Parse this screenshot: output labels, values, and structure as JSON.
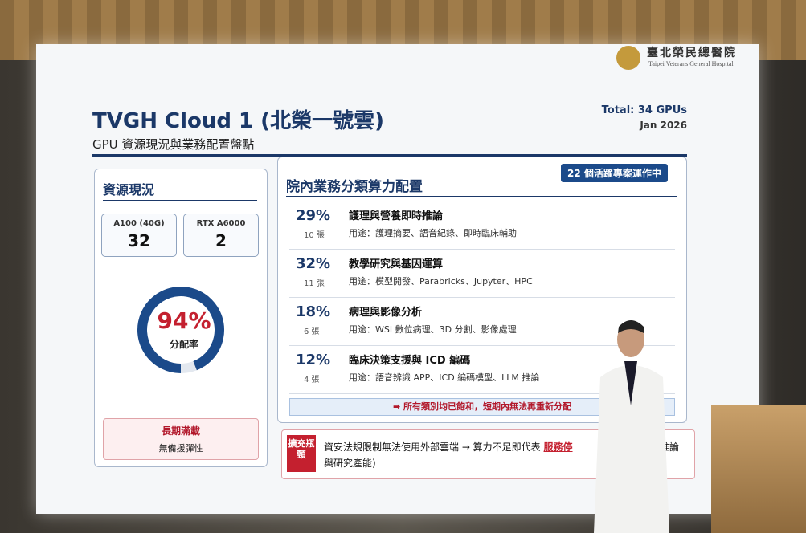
{
  "logo": {
    "name": "臺北榮民總醫院",
    "name_en": "Taipei Veterans General Hospital"
  },
  "header": {
    "title": "TVGH Cloud 1 (北榮一號雲)",
    "subtitle": "GPU 資源現況與業務配置盤點",
    "total": "Total: 34 GPUs",
    "date": "Jan 2026"
  },
  "resources": {
    "heading": "資源現況",
    "cards": [
      {
        "name": "A100 (40G)",
        "count": "32"
      },
      {
        "name": "RTX A6000",
        "count": "2"
      }
    ],
    "gauge": {
      "value": 94,
      "label": "94%",
      "caption": "分配率"
    },
    "warning": {
      "title": "長期滿載",
      "text": "無備援彈性"
    }
  },
  "allocation": {
    "heading": "院內業務分類算力配置",
    "badge": "22 個活躍專案運作中",
    "rows": [
      {
        "percent": "29%",
        "cards": "10 張",
        "name": "護理與營養即時推論",
        "usage": "用途：護理摘要、語音紀錄、即時臨床輔助"
      },
      {
        "percent": "32%",
        "cards": "11 張",
        "name": "教學研究與基因運算",
        "usage": "用途：模型開發、Parabricks、Jupyter、HPC"
      },
      {
        "percent": "18%",
        "cards": "6 張",
        "name": "病理與影像分析",
        "usage": "用途：WSI 數位病理、3D 分割、影像處理"
      },
      {
        "percent": "12%",
        "cards": "4 張",
        "name": "臨床決策支援與 ICD 編碼",
        "usage": "用途：語音辨識 APP、ICD 編碼模型、LLM 推論"
      }
    ],
    "note": "➡ 所有類別均已飽和，短期內無法再重新分配"
  },
  "bottleneck": {
    "tag": "擴充瓶頸",
    "text": "資安法規限制無法使用外部雲端 → 算力不足即代表",
    "highlight": "服務停",
    "tail": "推論",
    "line2": "與研究產能)"
  }
}
